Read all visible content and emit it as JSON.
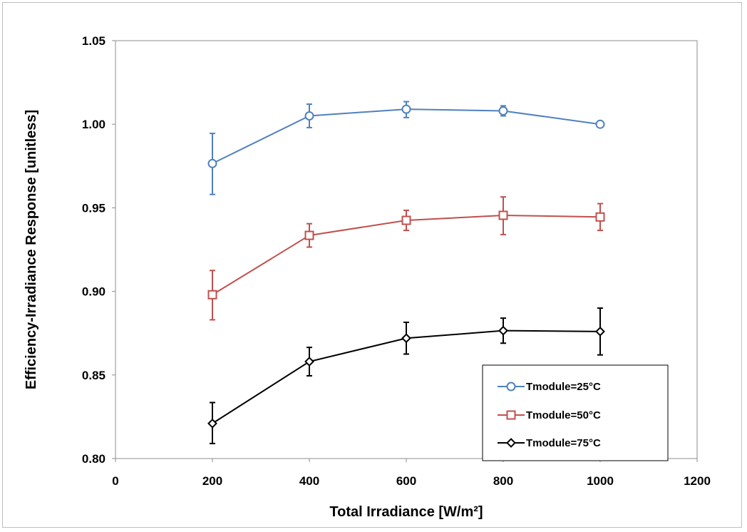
{
  "chart_data": {
    "type": "line",
    "xlabel": "Total Irradiance [W/m²]",
    "ylabel": "Efficiency-Irradiance Response [unitless]",
    "xlim": [
      0,
      1200
    ],
    "ylim": [
      0.8,
      1.05
    ],
    "x_ticks": [
      "0",
      "200",
      "400",
      "600",
      "800",
      "1000",
      "1200"
    ],
    "y_ticks": [
      "0.80",
      "0.85",
      "0.90",
      "0.95",
      "1.00",
      "1.05"
    ],
    "grid": false,
    "legend_position": "bottom-right",
    "series": [
      {
        "name": "Tmodule=25°C",
        "color": "#4f81bd",
        "marker": "circle",
        "x": [
          200,
          400,
          600,
          800,
          1000
        ],
        "y": [
          0.9765,
          1.005,
          1.009,
          1.008,
          1.0
        ],
        "err_low": [
          0.958,
          0.998,
          1.004,
          1.005,
          1.0
        ],
        "err_high": [
          0.9945,
          1.012,
          1.0135,
          1.011,
          1.0
        ]
      },
      {
        "name": "Tmodule=50°C",
        "color": "#c0504d",
        "marker": "square",
        "x": [
          200,
          400,
          600,
          800,
          1000
        ],
        "y": [
          0.898,
          0.9335,
          0.9425,
          0.9455,
          0.9445
        ],
        "err_low": [
          0.883,
          0.9265,
          0.9365,
          0.934,
          0.9365
        ],
        "err_high": [
          0.9125,
          0.9405,
          0.9485,
          0.9565,
          0.9525
        ]
      },
      {
        "name": "Tmodule=75°C",
        "color": "#000000",
        "marker": "diamond",
        "x": [
          200,
          400,
          600,
          800,
          1000
        ],
        "y": [
          0.821,
          0.858,
          0.872,
          0.8765,
          0.876
        ],
        "err_low": [
          0.809,
          0.8495,
          0.8625,
          0.869,
          0.862
        ],
        "err_high": [
          0.8335,
          0.8665,
          0.8815,
          0.884,
          0.89
        ]
      }
    ]
  }
}
